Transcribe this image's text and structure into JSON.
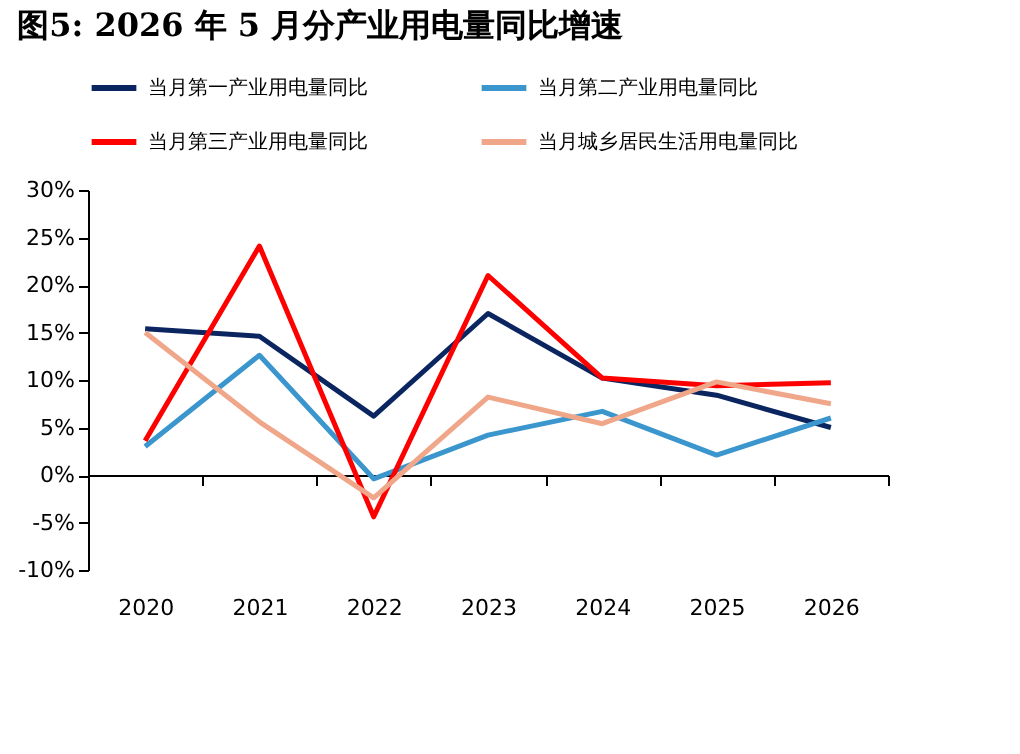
{
  "chart_data": {
    "type": "line",
    "title": "图5: 2026 年 5 月分产业用电量同比增速",
    "categories": [
      "2020",
      "2021",
      "2022",
      "2023",
      "2024",
      "2025",
      "2026"
    ],
    "series": [
      {
        "name": "当月第一产业用电量同比",
        "color": "#0b2560",
        "values": [
          15.4,
          14.6,
          6.2,
          17.0,
          10.2,
          8.4,
          5.0
        ]
      },
      {
        "name": "当月第二产业用电量同比",
        "color": "#3a96cc",
        "values": [
          3.0,
          12.6,
          -0.4,
          4.2,
          6.7,
          2.1,
          6.0
        ]
      },
      {
        "name": "当月第三产业用电量同比",
        "color": "#ff0000",
        "values": [
          3.6,
          24.1,
          -4.4,
          21.0,
          10.2,
          9.4,
          9.7
        ]
      },
      {
        "name": "当月城乡居民生活用电量同比",
        "color": "#f0a689",
        "values": [
          15.0,
          5.6,
          -2.4,
          8.2,
          5.4,
          9.8,
          7.5
        ]
      }
    ],
    "ylim": [
      -10,
      30
    ],
    "yticks": [
      {
        "value": -10,
        "label": "-10%"
      },
      {
        "value": -5,
        "label": "-5%"
      },
      {
        "value": 0,
        "label": "0%"
      },
      {
        "value": 5,
        "label": "5%"
      },
      {
        "value": 10,
        "label": "10%"
      },
      {
        "value": 15,
        "label": "15%"
      },
      {
        "value": 20,
        "label": "20%"
      },
      {
        "value": 25,
        "label": "25%"
      },
      {
        "value": 30,
        "label": "30%"
      }
    ],
    "legend": "top",
    "marker": "none",
    "line_style": "solid"
  }
}
